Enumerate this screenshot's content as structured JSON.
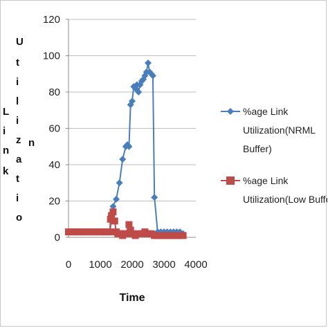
{
  "chart_data": {
    "type": "line",
    "ylabel": "Link Utilization",
    "ylabel_parts": [
      "L",
      "i",
      "n",
      "k",
      "U",
      "t",
      "i",
      "l",
      "i",
      "z",
      "a",
      "t",
      "i",
      "o",
      "n"
    ],
    "xlabel": "Time",
    "xlim": [
      0,
      4000
    ],
    "ylim": [
      0,
      120
    ],
    "x_ticks": [
      "0",
      "1000",
      "2000",
      "3000",
      "4000"
    ],
    "y_ticks": [
      "0",
      "20",
      "40",
      "60",
      "80",
      "100",
      "120"
    ],
    "grid": "horizontal",
    "legend_position": "right",
    "series": [
      {
        "name": "%age Link Utilization(NRML Buffer)",
        "name_lines": [
          "%age Link",
          "Utilization(NRML",
          "Buffer)"
        ],
        "color": "#4a7ebb",
        "marker": "diamond",
        "points": [
          [
            0,
            3
          ],
          [
            100,
            3
          ],
          [
            200,
            3
          ],
          [
            300,
            3
          ],
          [
            400,
            3
          ],
          [
            500,
            3
          ],
          [
            600,
            3
          ],
          [
            700,
            3
          ],
          [
            800,
            3
          ],
          [
            900,
            3
          ],
          [
            1000,
            3
          ],
          [
            1100,
            3
          ],
          [
            1200,
            3
          ],
          [
            1300,
            3
          ],
          [
            1400,
            17
          ],
          [
            1500,
            21
          ],
          [
            1600,
            30
          ],
          [
            1700,
            43
          ],
          [
            1800,
            50
          ],
          [
            1850,
            51
          ],
          [
            1900,
            50
          ],
          [
            1950,
            73
          ],
          [
            2000,
            75
          ],
          [
            2050,
            83
          ],
          [
            2100,
            82
          ],
          [
            2150,
            84
          ],
          [
            2200,
            80
          ],
          [
            2250,
            84
          ],
          [
            2300,
            86
          ],
          [
            2350,
            87
          ],
          [
            2400,
            89
          ],
          [
            2450,
            91
          ],
          [
            2500,
            96
          ],
          [
            2550,
            91
          ],
          [
            2600,
            90
          ],
          [
            2650,
            89
          ],
          [
            2700,
            22
          ],
          [
            2800,
            3
          ],
          [
            2900,
            3
          ],
          [
            3000,
            3
          ],
          [
            3100,
            3
          ],
          [
            3200,
            3
          ],
          [
            3300,
            3
          ],
          [
            3400,
            3
          ],
          [
            3500,
            3
          ],
          [
            3600,
            2
          ]
        ]
      },
      {
        "name": "%age Link Utilization(Low Buffer)",
        "name_lines": [
          "%age Link",
          "Utilization(Low Buffer)"
        ],
        "color": "#be4b48",
        "marker": "square",
        "points": [
          [
            0,
            3
          ],
          [
            100,
            3
          ],
          [
            200,
            3
          ],
          [
            300,
            3
          ],
          [
            400,
            3
          ],
          [
            500,
            3
          ],
          [
            600,
            3
          ],
          [
            700,
            3
          ],
          [
            800,
            3
          ],
          [
            900,
            3
          ],
          [
            1000,
            3
          ],
          [
            1100,
            3
          ],
          [
            1200,
            3
          ],
          [
            1300,
            3
          ],
          [
            1320,
            10
          ],
          [
            1350,
            12
          ],
          [
            1400,
            14
          ],
          [
            1450,
            9
          ],
          [
            1500,
            3
          ],
          [
            1550,
            2
          ],
          [
            1600,
            2
          ],
          [
            1650,
            2
          ],
          [
            1700,
            1
          ],
          [
            1800,
            2
          ],
          [
            1900,
            7
          ],
          [
            1950,
            4
          ],
          [
            2000,
            2
          ],
          [
            2100,
            1
          ],
          [
            2200,
            2
          ],
          [
            2300,
            2
          ],
          [
            2400,
            3
          ],
          [
            2500,
            2
          ],
          [
            2600,
            2
          ],
          [
            2700,
            1
          ],
          [
            2800,
            1
          ],
          [
            2900,
            1
          ],
          [
            3000,
            1
          ],
          [
            3100,
            1
          ],
          [
            3200,
            1
          ],
          [
            3300,
            1
          ],
          [
            3400,
            1
          ],
          [
            3500,
            1
          ],
          [
            3600,
            1
          ]
        ]
      }
    ]
  }
}
